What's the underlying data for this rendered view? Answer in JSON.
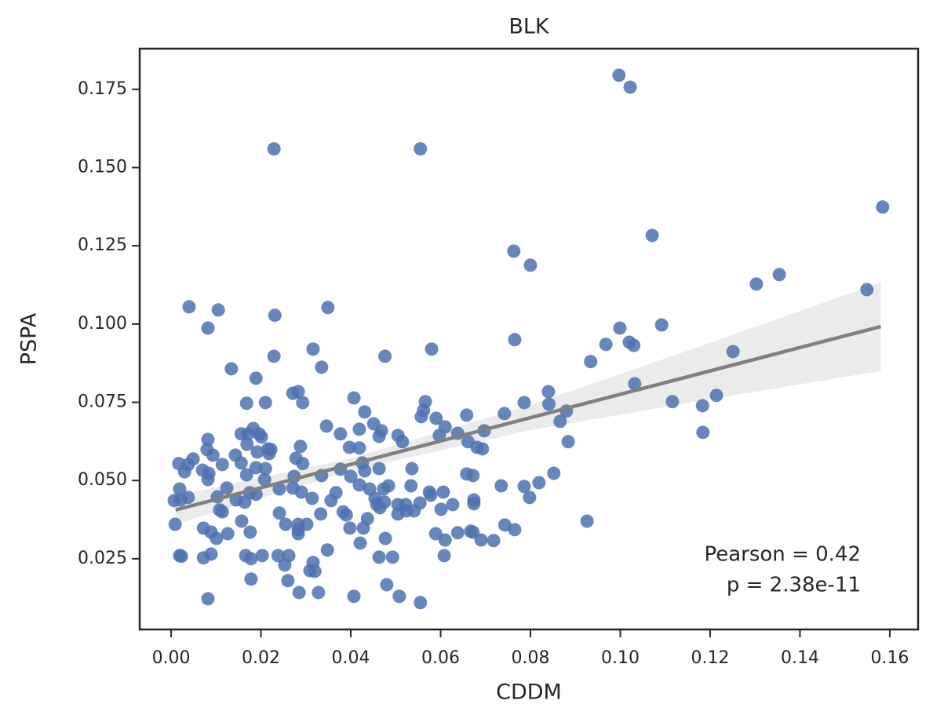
{
  "chart_data": {
    "type": "scatter",
    "title": "BLK",
    "xlabel": "CDDM",
    "ylabel": "PSPA",
    "color": "#4c72b0",
    "xlim": [
      -0.007,
      0.1663
    ],
    "ylim": [
      0.0024,
      0.188
    ],
    "xticks": [
      {
        "value": 0,
        "label": "0.00"
      },
      0.02,
      0.04,
      0.06,
      0.08,
      {
        "value": 0.1,
        "label": "0.10"
      },
      0.12,
      0.14,
      0.16
    ],
    "yticks": [
      0.025,
      {
        "value": 0.05,
        "label": "0.050"
      },
      0.075,
      {
        "value": 0.1,
        "label": "0.100"
      },
      0.125,
      {
        "value": 0.15,
        "label": "0.150"
      },
      0.175
    ],
    "x": [
      0.0997,
      0.1022,
      0.0229,
      0.0555,
      0.1584,
      0.1071,
      0.0763,
      0.08,
      0.1354,
      0.1303,
      0.1549,
      0.004,
      0.0105,
      0.0349,
      0.0231,
      0.0082,
      0.0999,
      0.1092,
      0.102,
      0.103,
      0.0968,
      0.0316,
      0.058,
      0.0765,
      0.0476,
      0.0229,
      0.1251,
      0.0934,
      0.0134,
      0.0335,
      0.0189,
      0.1032,
      0.084,
      0.0271,
      0.0283,
      0.1214,
      0.0407,
      0.1116,
      0.1183,
      0.0168,
      0.021,
      0.0293,
      0.0566,
      0.0786,
      0.0841,
      0.0431,
      0.0562,
      0.0742,
      0.0658,
      0.0557,
      0.088,
      0.059,
      0.0866,
      0.0451,
      0.0346,
      0.0419,
      0.0468,
      0.061,
      0.0697,
      0.1184,
      0.0377,
      0.0156,
      0.0171,
      0.0183,
      0.0196,
      0.0463,
      0.0505,
      0.0515,
      0.0597,
      0.0638,
      0.0661,
      0.0884,
      0.0082,
      0.0201,
      0.0169,
      0.0216,
      0.0222,
      0.0288,
      0.0397,
      0.0419,
      0.0681,
      0.0693,
      0.008,
      0.0192,
      0.0218,
      0.0143,
      0.0093,
      0.0049,
      0.0156,
      0.0017,
      0.0114,
      0.0038,
      0.0278,
      0.0293,
      0.0426,
      0.0189,
      0.021,
      0.0377,
      0.0431,
      0.0463,
      0.0536,
      0.003,
      0.007,
      0.0084,
      0.0168,
      0.0335,
      0.04,
      0.0658,
      0.0672,
      0.0852,
      0.0082,
      0.0208,
      0.0274,
      0.0819,
      0.0419,
      0.0484,
      0.0534,
      0.0735,
      0.0786,
      0.0124,
      0.0019,
      0.0241,
      0.0271,
      0.0442,
      0.0473,
      0.029,
      0.0367,
      0.0575,
      0.0606,
      0.0103,
      0.0175,
      0.0189,
      0.0578,
      0.0798,
      0.0038,
      0.0021,
      0.0145,
      0.0454,
      0.0164,
      0.0314,
      0.0356,
      0.0475,
      0.0505,
      0.0522,
      0.0458,
      0.0554,
      0.0674,
      0.0674,
      0.0627,
      0.0601,
      0.0007,
      0.0465,
      0.0524,
      0.0541,
      0.0108,
      0.0114,
      0.0383,
      0.0505,
      0.0333,
      0.0241,
      0.039,
      0.0437,
      0.0157,
      0.0283,
      0.0302,
      0.0255,
      0.0009,
      0.0072,
      0.0428,
      0.0398,
      0.0743,
      0.0926,
      0.0765,
      0.0283,
      0.0672,
      0.0667,
      0.0176,
      0.0089,
      0.0283,
      0.0638,
      0.0589,
      0.0126,
      0.0101,
      0.0477,
      0.061,
      0.069,
      0.0718,
      0.0421,
      0.0348,
      0.0019,
      0.0023,
      0.0072,
      0.0089,
      0.0166,
      0.0178,
      0.0203,
      0.0238,
      0.0262,
      0.0463,
      0.0493,
      0.0608,
      0.0253,
      0.0316,
      0.0309,
      0.032,
      0.0178,
      0.026,
      0.048,
      0.0285,
      0.0328,
      0.0082,
      0.0407,
      0.0508,
      0.0555
    ],
    "values": [
      0.1795,
      0.1757,
      0.156,
      0.156,
      0.1374,
      0.1283,
      0.1233,
      0.1188,
      0.1158,
      0.1128,
      0.111,
      0.1055,
      0.1045,
      0.1053,
      0.1028,
      0.0987,
      0.0987,
      0.0997,
      0.0942,
      0.0932,
      0.0935,
      0.092,
      0.092,
      0.095,
      0.0897,
      0.0897,
      0.0912,
      0.088,
      0.0857,
      0.0862,
      0.0827,
      0.0809,
      0.0784,
      0.0779,
      0.0784,
      0.0772,
      0.0764,
      0.0752,
      0.0739,
      0.0747,
      0.0749,
      0.0749,
      0.0752,
      0.0749,
      0.0744,
      0.0719,
      0.0724,
      0.0714,
      0.0709,
      0.0704,
      0.0722,
      0.0699,
      0.0689,
      0.0681,
      0.0674,
      0.0664,
      0.0659,
      0.0671,
      0.0659,
      0.0654,
      0.0649,
      0.0649,
      0.0649,
      0.0666,
      0.0649,
      0.0641,
      0.0644,
      0.0624,
      0.0644,
      0.0651,
      0.0624,
      0.0624,
      0.0631,
      0.0639,
      0.0616,
      0.0601,
      0.0599,
      0.0609,
      0.0606,
      0.0604,
      0.0606,
      0.0601,
      0.0599,
      0.0591,
      0.0586,
      0.0581,
      0.0581,
      0.0569,
      0.0556,
      0.0554,
      0.0551,
      0.0551,
      0.0571,
      0.0554,
      0.0556,
      0.0541,
      0.0538,
      0.0536,
      0.0531,
      0.0538,
      0.0538,
      0.0528,
      0.0533,
      0.0523,
      0.0518,
      0.0516,
      0.0513,
      0.0521,
      0.0516,
      0.0523,
      0.0503,
      0.0503,
      0.0513,
      0.0493,
      0.0486,
      0.0483,
      0.0483,
      0.0483,
      0.0481,
      0.0476,
      0.0473,
      0.0473,
      0.0476,
      0.0473,
      0.0473,
      0.0463,
      0.0461,
      0.0463,
      0.0463,
      0.0448,
      0.0461,
      0.0456,
      0.0453,
      0.0446,
      0.0446,
      0.0438,
      0.0438,
      0.0443,
      0.0431,
      0.0443,
      0.0436,
      0.0431,
      0.0423,
      0.0423,
      0.0423,
      0.0428,
      0.0438,
      0.0426,
      0.0423,
      0.0408,
      0.0436,
      0.0413,
      0.0403,
      0.0403,
      0.0406,
      0.04,
      0.04,
      0.0393,
      0.0393,
      0.0396,
      0.039,
      0.0378,
      0.037,
      0.036,
      0.036,
      0.036,
      0.036,
      0.0348,
      0.0348,
      0.0348,
      0.0358,
      0.037,
      0.0343,
      0.0343,
      0.0335,
      0.0338,
      0.0335,
      0.0335,
      0.033,
      0.0333,
      0.033,
      0.033,
      0.0315,
      0.0315,
      0.031,
      0.031,
      0.0308,
      0.03,
      0.0278,
      0.026,
      0.0258,
      0.0253,
      0.0265,
      0.026,
      0.025,
      0.026,
      0.026,
      0.026,
      0.0255,
      0.0255,
      0.026,
      0.023,
      0.0238,
      0.0212,
      0.021,
      0.0185,
      0.018,
      0.0167,
      0.0142,
      0.0142,
      0.0122,
      0.013,
      0.013,
      0.011
    ],
    "regression": {
      "color": "#808080",
      "x": [
        0.001,
        0.158
      ],
      "values": [
        0.0406,
        0.0992
      ]
    },
    "band": {
      "color": "#ebebeb",
      "x": [
        0.001,
        0.04,
        0.08,
        0.12,
        0.158
      ],
      "lower": [
        0.0361,
        0.0531,
        0.0661,
        0.076,
        0.085
      ],
      "upper": [
        0.0451,
        0.0571,
        0.0741,
        0.094,
        0.1133
      ]
    },
    "annotations": [
      "Pearson = 0.42",
      "p = 2.38e-11"
    ]
  }
}
